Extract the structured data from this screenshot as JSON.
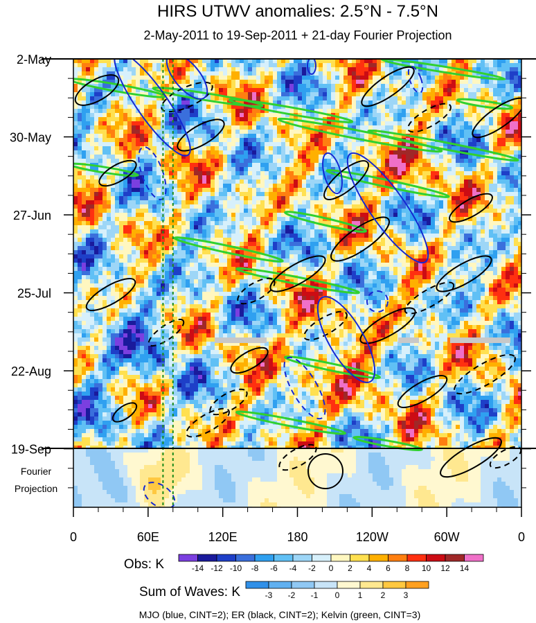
{
  "chart_data": {
    "type": "heatmap",
    "title": "HIRS UTWV anomalies: 2.5°N - 7.5°N",
    "subtitle": "2-May-2011 to 19-Sep-2011 + 21-day Fourier Projection",
    "xaxis": {
      "tick_labels": [
        "0",
        "60E",
        "120E",
        "180",
        "120W",
        "60W",
        "0"
      ],
      "tick_longitudes": [
        0,
        60,
        120,
        180,
        240,
        300,
        360
      ],
      "range": [
        0,
        360
      ]
    },
    "yaxis": {
      "tick_labels": [
        "2-May",
        "30-May",
        "27-Jun",
        "25-Jul",
        "22-Aug",
        "19-Sep"
      ],
      "tick_day_offsets": [
        0,
        28,
        56,
        84,
        112,
        140
      ],
      "range_days": [
        0,
        161
      ],
      "reversed": true,
      "projection_label_line1": "Fourier",
      "projection_label_line2": "Projection",
      "projection_days": 21
    },
    "reference_lines_lon": [
      72,
      80
    ],
    "obs_colorbar": {
      "label": "Obs: K",
      "levels": [
        "-14",
        "-12",
        "-10",
        "-8",
        "-6",
        "-4",
        "-2",
        "0",
        "2",
        "4",
        "6",
        "8",
        "10",
        "12",
        "14"
      ],
      "colors": [
        "#7b3fe0",
        "#1a1a9c",
        "#1e3fc8",
        "#3a6fdc",
        "#2fa0f0",
        "#60c0f5",
        "#9dd6f7",
        "#d7f0fb",
        "#fff7c0",
        "#ffe050",
        "#ffb000",
        "#ff7f10",
        "#ff3010",
        "#cc0c14",
        "#a02828",
        "#f070c8"
      ]
    },
    "waves_colorbar": {
      "label": "Sum of Waves: K",
      "levels": [
        "-3",
        "-2",
        "-1",
        "0",
        "1",
        "2",
        "3"
      ],
      "colors": [
        "#3090e8",
        "#60b0f0",
        "#90c8f4",
        "#c8e4f8",
        "#fff8d0",
        "#ffe890",
        "#ffc840",
        "#ffa020"
      ]
    },
    "contour_legend": "MJO (blue, CINT=2); ER (black, CINT=2); Kelvin (green, CINT=3)",
    "contour_colors": {
      "mjo": "#1428d2",
      "er": "#000000",
      "kelvin": "#30d030"
    }
  }
}
